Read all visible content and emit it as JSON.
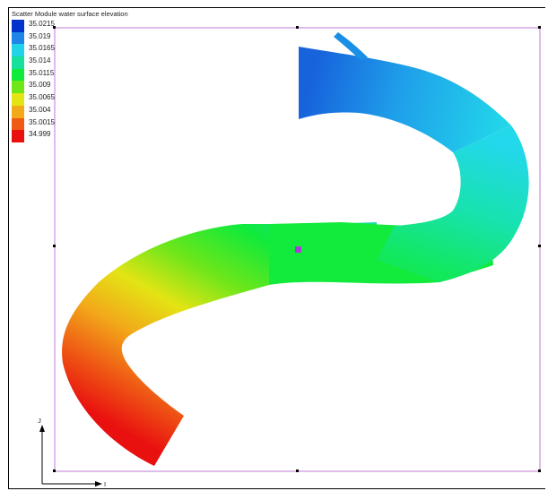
{
  "legend": {
    "title": "Scatter Module water surface elevation",
    "items": [
      {
        "value": "35.0215",
        "color": "#0033cc"
      },
      {
        "value": "35.019",
        "color": "#1f86e8"
      },
      {
        "value": "35.0165",
        "color": "#22d2e6"
      },
      {
        "value": "35.014",
        "color": "#16e09b"
      },
      {
        "value": "35.0115",
        "color": "#10ea3a"
      },
      {
        "value": "35.009",
        "color": "#6ee61a"
      },
      {
        "value": "35.0065",
        "color": "#e3e414"
      },
      {
        "value": "35.004",
        "color": "#f2a91a"
      },
      {
        "value": "35.0015",
        "color": "#ef5a14"
      },
      {
        "value": "34.999",
        "color": "#e91010"
      }
    ]
  },
  "axes": {
    "j_label": "J",
    "i_label": "I"
  }
}
